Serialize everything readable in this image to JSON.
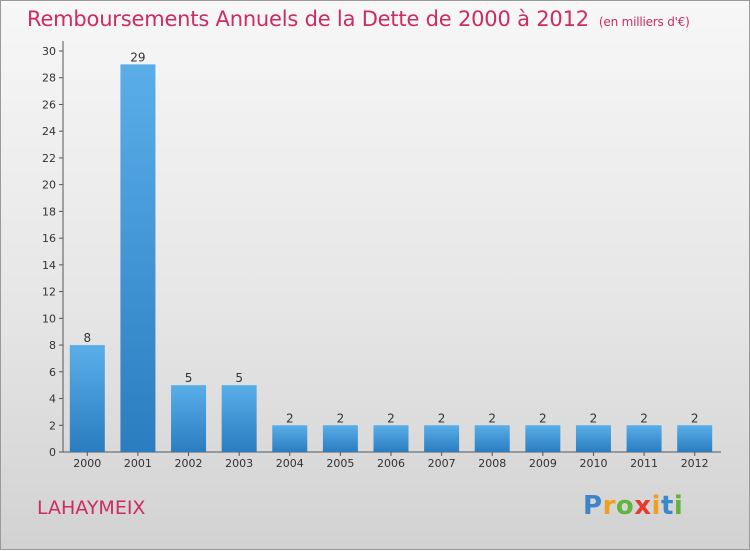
{
  "title": "Remboursements Annuels de la Dette de 2000 à 2012",
  "subtitle": "(en milliers d'€)",
  "place": "LAHAYMEIX",
  "logo": {
    "letters": [
      "P",
      "r",
      "o",
      "x",
      "i",
      "t",
      "i"
    ],
    "colors": [
      "#3a86c8",
      "#f0a020",
      "#63b33f",
      "#e63c2e",
      "#f0a020",
      "#3a86c8",
      "#63b33f"
    ]
  },
  "colors": {
    "title": "#cc2b63",
    "bar_top": "#5aaee8",
    "bar_bottom": "#2a7dc0"
  },
  "chart_data": {
    "type": "bar",
    "categories": [
      "2000",
      "2001",
      "2002",
      "2003",
      "2004",
      "2005",
      "2006",
      "2007",
      "2008",
      "2009",
      "2010",
      "2011",
      "2012"
    ],
    "values": [
      8,
      29,
      5,
      5,
      2,
      2,
      2,
      2,
      2,
      2,
      2,
      2,
      2
    ],
    "ylim": [
      0,
      30
    ],
    "yticks": [
      0,
      2,
      4,
      6,
      8,
      10,
      12,
      14,
      16,
      18,
      20,
      22,
      24,
      26,
      28,
      30
    ],
    "grid": false
  }
}
